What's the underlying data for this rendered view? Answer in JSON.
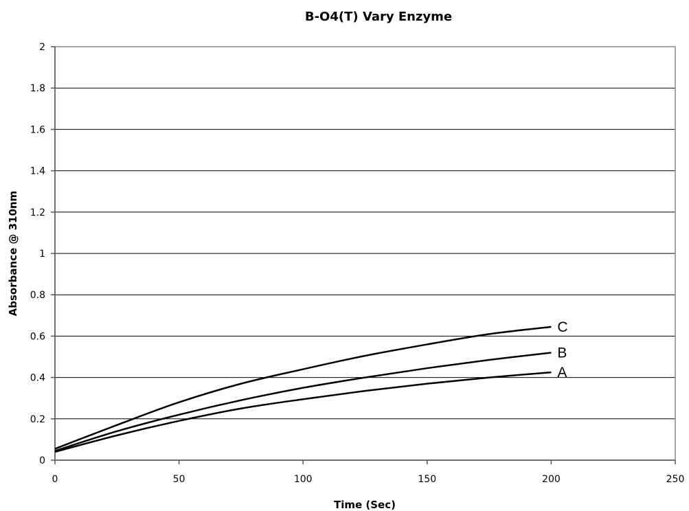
{
  "chart_data": {
    "type": "line",
    "title": "B-O4(T) Vary Enzyme",
    "xlabel": "Time (Sec)",
    "ylabel": "Absorbance @ 310nm",
    "xlim": [
      0,
      250
    ],
    "ylim": [
      0,
      2
    ],
    "x_ticks": [
      0,
      50,
      100,
      150,
      200,
      250
    ],
    "x_tick_labels": [
      "0",
      "50",
      "100",
      "150",
      "200",
      "250"
    ],
    "y_ticks": [
      0,
      0.2,
      0.4,
      0.6,
      0.8,
      1,
      1.2,
      1.4,
      1.6,
      1.8,
      2
    ],
    "y_tick_labels": [
      "0",
      "0.2",
      "0.4",
      "0.6",
      "0.8",
      "1",
      "1.2",
      "1.4",
      "1.6",
      "1.8",
      "2"
    ],
    "grid": "horizontal",
    "series": [
      {
        "name": "A",
        "x": [
          0,
          25,
          50,
          75,
          100,
          125,
          150,
          175,
          200
        ],
        "y": [
          0.04,
          0.12,
          0.19,
          0.25,
          0.295,
          0.335,
          0.37,
          0.4,
          0.425
        ]
      },
      {
        "name": "B",
        "x": [
          0,
          25,
          50,
          75,
          100,
          125,
          150,
          175,
          200
        ],
        "y": [
          0.045,
          0.14,
          0.22,
          0.29,
          0.35,
          0.4,
          0.445,
          0.485,
          0.52
        ]
      },
      {
        "name": "C",
        "x": [
          0,
          25,
          50,
          75,
          100,
          125,
          150,
          175,
          200
        ],
        "y": [
          0.055,
          0.17,
          0.28,
          0.37,
          0.44,
          0.505,
          0.56,
          0.61,
          0.645
        ]
      }
    ]
  }
}
